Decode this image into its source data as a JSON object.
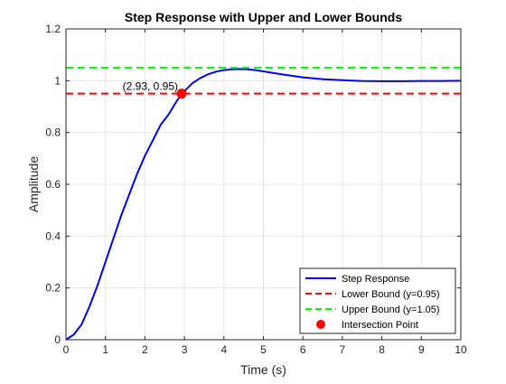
{
  "chart_data": {
    "type": "line",
    "title": "Step Response with Upper and Lower Bounds",
    "xlabel": "Time (s)",
    "ylabel": "Amplitude",
    "xlim": [
      0,
      10
    ],
    "ylim": [
      0,
      1.2
    ],
    "xticks": [
      "0",
      "1",
      "2",
      "3",
      "4",
      "5",
      "6",
      "7",
      "8",
      "9",
      "10"
    ],
    "yticks": [
      "0",
      "0.2",
      "0.4",
      "0.6",
      "0.8",
      "1",
      "1.2"
    ],
    "grid": true,
    "legend_position": "bottom-right",
    "series": [
      {
        "name": "Step Response",
        "style": "solid",
        "color": "#0000ff",
        "x": [
          0,
          0.2,
          0.4,
          0.6,
          0.8,
          1.0,
          1.2,
          1.4,
          1.6,
          1.8,
          2.0,
          2.2,
          2.4,
          2.6,
          2.8,
          2.93,
          3.0,
          3.2,
          3.4,
          3.6,
          3.8,
          4.0,
          4.2,
          4.4,
          4.6,
          4.8,
          5.0,
          5.5,
          6.0,
          6.5,
          7.0,
          7.5,
          8.0,
          8.5,
          9.0,
          9.5,
          10.0
        ],
        "y": [
          0,
          0.02,
          0.06,
          0.13,
          0.21,
          0.3,
          0.39,
          0.48,
          0.56,
          0.64,
          0.71,
          0.77,
          0.83,
          0.87,
          0.92,
          0.95,
          0.96,
          0.99,
          1.01,
          1.025,
          1.035,
          1.041,
          1.044,
          1.045,
          1.044,
          1.041,
          1.036,
          1.024,
          1.013,
          1.006,
          1.002,
          0.999,
          0.998,
          0.998,
          0.999,
          0.999,
          1.0
        ]
      },
      {
        "name": "Lower Bound (y=0.95)",
        "style": "dashed",
        "color": "#ff0000",
        "x": [
          0,
          10
        ],
        "y": [
          0.95,
          0.95
        ]
      },
      {
        "name": "Upper Bound (y=1.05)",
        "style": "dashed",
        "color": "#00ff00",
        "x": [
          0,
          10
        ],
        "y": [
          1.05,
          1.05
        ]
      }
    ],
    "points": [
      {
        "name": "Intersection Point",
        "color": "#ff0000",
        "x": 2.93,
        "y": 0.95,
        "label": "(2.93, 0.95)"
      }
    ]
  }
}
